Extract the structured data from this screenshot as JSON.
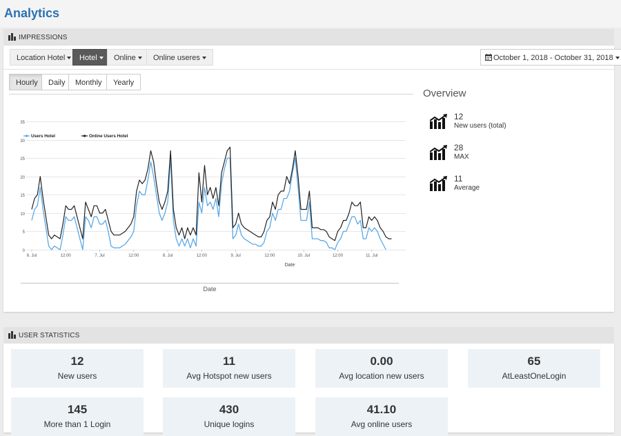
{
  "page": {
    "title": "Analytics"
  },
  "impressions": {
    "header": "IMPRESSIONS",
    "filters": [
      {
        "label": "Location Hotel",
        "active": false
      },
      {
        "label": "Hotel",
        "active": true
      },
      {
        "label": "Online",
        "active": false
      },
      {
        "label": "Online useres",
        "active": false
      }
    ],
    "date_range": "October 1, 2018 - October 31, 2018",
    "tabs": [
      {
        "label": "Hourly",
        "active": true
      },
      {
        "label": "Daily",
        "active": false
      },
      {
        "label": "Monthly",
        "active": false
      },
      {
        "label": "Yearly",
        "active": false
      }
    ],
    "outer_axis_label": "Date"
  },
  "overview": {
    "title": "Overview",
    "items": [
      {
        "value": "12",
        "label": "New users (total)",
        "icon": "trending-chart-icon"
      },
      {
        "value": "28",
        "label": "MAX",
        "icon": "trending-chart-icon"
      },
      {
        "value": "11",
        "label": "Average",
        "icon": "trending-chart-icon"
      }
    ]
  },
  "user_statistics": {
    "header": "USER STATISTICS",
    "stats": [
      {
        "value": "12",
        "label": "New users"
      },
      {
        "value": "11",
        "label": "Avg Hotspot new users"
      },
      {
        "value": "0.00",
        "label": "Avg location new users"
      },
      {
        "value": "65",
        "label": "AtLeastOneLogin"
      },
      {
        "value": "145",
        "label": "More than 1 Login"
      },
      {
        "value": "430",
        "label": "Unique logins"
      },
      {
        "value": "41.10",
        "label": "Avg online users"
      }
    ]
  },
  "colors": {
    "title": "#2a72b5",
    "series_users": "#5aa9e6",
    "series_online": "#222222",
    "stat_bg": "#edf2f7"
  },
  "chart_data": {
    "type": "line",
    "title": "",
    "xlabel": "Date",
    "ylabel": "",
    "ylim": [
      0,
      35
    ],
    "yticks": [
      0,
      5,
      10,
      15,
      20,
      25,
      30,
      35
    ],
    "xlim": [
      0,
      132
    ],
    "x_unit": "hours from 6. Jul 00:00",
    "xticks": [
      {
        "x": 0,
        "label": "6. Jul"
      },
      {
        "x": 12,
        "label": "12:00"
      },
      {
        "x": 24,
        "label": "7. Jul"
      },
      {
        "x": 36,
        "label": "12:00"
      },
      {
        "x": 48,
        "label": "8. Jul"
      },
      {
        "x": 60,
        "label": "12:00"
      },
      {
        "x": 72,
        "label": "9. Jul"
      },
      {
        "x": 84,
        "label": "12:00"
      },
      {
        "x": 96,
        "label": "10. Jul"
      },
      {
        "x": 108,
        "label": "12:00"
      },
      {
        "x": 120,
        "label": "11. Jul"
      }
    ],
    "grid": true,
    "legend_position": "top-left",
    "series": [
      {
        "name": "Users Hotel",
        "color": "#5aa9e6",
        "points": [
          [
            0,
            8
          ],
          [
            1,
            11
          ],
          [
            2,
            12
          ],
          [
            3,
            17
          ],
          [
            4,
            11
          ],
          [
            5,
            6
          ],
          [
            6,
            1
          ],
          [
            7,
            0
          ],
          [
            8,
            1
          ],
          [
            9,
            0.5
          ],
          [
            10,
            0
          ],
          [
            11,
            4
          ],
          [
            12,
            9
          ],
          [
            13,
            8
          ],
          [
            14,
            8
          ],
          [
            15,
            9
          ],
          [
            16,
            6
          ],
          [
            17,
            3
          ],
          [
            18,
            0
          ],
          [
            19,
            9
          ],
          [
            20,
            8
          ],
          [
            21,
            6
          ],
          [
            22,
            9
          ],
          [
            23,
            9
          ],
          [
            24,
            7
          ],
          [
            25,
            7
          ],
          [
            26,
            8
          ],
          [
            27,
            5
          ],
          [
            28,
            1
          ],
          [
            29,
            0.5
          ],
          [
            30,
            0.5
          ],
          [
            31,
            0.5
          ],
          [
            32,
            1
          ],
          [
            33,
            1.5
          ],
          [
            34,
            2.5
          ],
          [
            35,
            3.5
          ],
          [
            36,
            5
          ],
          [
            37,
            12
          ],
          [
            38,
            16
          ],
          [
            39,
            15
          ],
          [
            40,
            15
          ],
          [
            41,
            19
          ],
          [
            42,
            24
          ],
          [
            43,
            20
          ],
          [
            44,
            15
          ],
          [
            45,
            10
          ],
          [
            46,
            8
          ],
          [
            47,
            10
          ],
          [
            48,
            13
          ],
          [
            49,
            25
          ],
          [
            50,
            8
          ],
          [
            51,
            3
          ],
          [
            52,
            1
          ],
          [
            53,
            3
          ],
          [
            54,
            1
          ],
          [
            55,
            3
          ],
          [
            56,
            0.5
          ],
          [
            57,
            3
          ],
          [
            58,
            1
          ],
          [
            59,
            13
          ],
          [
            60,
            10
          ],
          [
            61,
            17
          ],
          [
            62,
            12
          ],
          [
            63,
            13
          ],
          [
            64,
            11
          ],
          [
            65,
            14
          ],
          [
            66,
            9
          ],
          [
            67,
            18
          ],
          [
            68,
            22
          ],
          [
            69,
            25
          ],
          [
            70,
            25
          ],
          [
            71,
            3
          ],
          [
            72,
            4
          ],
          [
            73,
            7
          ],
          [
            74,
            4
          ],
          [
            75,
            3
          ],
          [
            76,
            2.5
          ],
          [
            77,
            2
          ],
          [
            78,
            1.5
          ],
          [
            79,
            1.5
          ],
          [
            80,
            1
          ],
          [
            81,
            1
          ],
          [
            82,
            2
          ],
          [
            83,
            5
          ],
          [
            84,
            6
          ],
          [
            85,
            10
          ],
          [
            86,
            8
          ],
          [
            87,
            11
          ],
          [
            88,
            11
          ],
          [
            89,
            14
          ],
          [
            90,
            14
          ],
          [
            91,
            16
          ],
          [
            92,
            21
          ],
          [
            93,
            25
          ],
          [
            94,
            17
          ],
          [
            95,
            8
          ],
          [
            96,
            8
          ],
          [
            97,
            8
          ],
          [
            98,
            13
          ],
          [
            99,
            3
          ],
          [
            100,
            3
          ],
          [
            101,
            3
          ],
          [
            102,
            2.5
          ],
          [
            103,
            2.5
          ],
          [
            104,
            2
          ],
          [
            105,
            0.5
          ],
          [
            106,
            0.5
          ],
          [
            107,
            0
          ],
          [
            108,
            2
          ],
          [
            109,
            3
          ],
          [
            110,
            5
          ],
          [
            111,
            5
          ],
          [
            112,
            7
          ],
          [
            113,
            9
          ],
          [
            114,
            9
          ],
          [
            115,
            7
          ],
          [
            116,
            8
          ],
          [
            117,
            3
          ],
          [
            118,
            3
          ],
          [
            119,
            6
          ],
          [
            120,
            5
          ],
          [
            121,
            6
          ],
          [
            122,
            5
          ],
          [
            123,
            3
          ],
          [
            124,
            1.5
          ],
          [
            125,
            0
          ]
        ]
      },
      {
        "name": "Online Users Hotel",
        "color": "#222222",
        "points": [
          [
            0,
            11
          ],
          [
            1,
            14
          ],
          [
            2,
            15
          ],
          [
            3,
            20
          ],
          [
            4,
            14
          ],
          [
            5,
            9
          ],
          [
            6,
            4
          ],
          [
            7,
            3
          ],
          [
            8,
            4
          ],
          [
            9,
            3.5
          ],
          [
            10,
            3
          ],
          [
            11,
            7
          ],
          [
            12,
            12
          ],
          [
            13,
            11
          ],
          [
            14,
            11
          ],
          [
            15,
            12
          ],
          [
            16,
            9
          ],
          [
            17,
            6
          ],
          [
            18,
            3
          ],
          [
            19,
            13
          ],
          [
            20,
            11
          ],
          [
            21,
            9
          ],
          [
            22,
            12
          ],
          [
            23,
            12
          ],
          [
            24,
            10
          ],
          [
            25,
            10
          ],
          [
            26,
            11
          ],
          [
            27,
            8
          ],
          [
            28,
            5
          ],
          [
            29,
            4
          ],
          [
            30,
            4
          ],
          [
            31,
            4
          ],
          [
            32,
            4.5
          ],
          [
            33,
            5
          ],
          [
            34,
            6
          ],
          [
            35,
            7
          ],
          [
            36,
            9
          ],
          [
            37,
            16
          ],
          [
            38,
            19
          ],
          [
            39,
            18
          ],
          [
            40,
            19
          ],
          [
            41,
            22
          ],
          [
            42,
            27
          ],
          [
            43,
            24
          ],
          [
            44,
            18
          ],
          [
            45,
            13
          ],
          [
            46,
            11
          ],
          [
            47,
            13
          ],
          [
            48,
            16
          ],
          [
            49,
            27
          ],
          [
            50,
            11
          ],
          [
            51,
            6
          ],
          [
            52,
            4
          ],
          [
            53,
            6
          ],
          [
            54,
            3
          ],
          [
            55,
            6
          ],
          [
            56,
            4
          ],
          [
            57,
            6
          ],
          [
            58,
            4
          ],
          [
            59,
            21
          ],
          [
            60,
            13
          ],
          [
            61,
            23
          ],
          [
            62,
            15
          ],
          [
            63,
            17
          ],
          [
            64,
            14
          ],
          [
            65,
            17
          ],
          [
            66,
            12
          ],
          [
            67,
            21
          ],
          [
            68,
            24
          ],
          [
            69,
            27
          ],
          [
            70,
            28
          ],
          [
            71,
            6
          ],
          [
            72,
            7
          ],
          [
            73,
            10
          ],
          [
            74,
            7
          ],
          [
            75,
            6
          ],
          [
            76,
            5.5
          ],
          [
            77,
            5
          ],
          [
            78,
            4.5
          ],
          [
            79,
            4
          ],
          [
            80,
            3.5
          ],
          [
            81,
            3.5
          ],
          [
            82,
            5
          ],
          [
            83,
            8
          ],
          [
            84,
            9
          ],
          [
            85,
            13
          ],
          [
            86,
            11
          ],
          [
            87,
            15
          ],
          [
            88,
            16
          ],
          [
            89,
            16
          ],
          [
            90,
            20
          ],
          [
            91,
            18
          ],
          [
            92,
            22
          ],
          [
            93,
            27
          ],
          [
            94,
            20
          ],
          [
            95,
            11
          ],
          [
            96,
            11
          ],
          [
            97,
            11
          ],
          [
            98,
            16
          ],
          [
            99,
            6
          ],
          [
            100,
            6
          ],
          [
            101,
            6
          ],
          [
            102,
            5.5
          ],
          [
            103,
            5.5
          ],
          [
            104,
            5
          ],
          [
            105,
            3.5
          ],
          [
            106,
            3
          ],
          [
            107,
            2.5
          ],
          [
            108,
            5
          ],
          [
            109,
            6
          ],
          [
            110,
            8
          ],
          [
            111,
            8
          ],
          [
            112,
            10
          ],
          [
            113,
            13
          ],
          [
            114,
            12
          ],
          [
            115,
            12
          ],
          [
            116,
            13
          ],
          [
            117,
            6
          ],
          [
            118,
            6
          ],
          [
            119,
            9
          ],
          [
            120,
            8
          ],
          [
            121,
            9
          ],
          [
            122,
            8
          ],
          [
            123,
            6
          ],
          [
            124,
            5
          ],
          [
            125,
            3.5
          ],
          [
            126,
            3
          ],
          [
            127,
            3
          ]
        ]
      }
    ]
  }
}
